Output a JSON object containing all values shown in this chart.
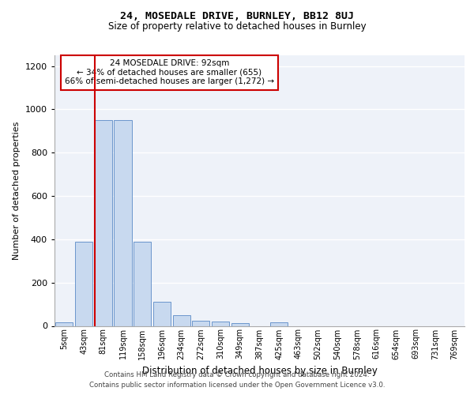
{
  "title1": "24, MOSEDALE DRIVE, BURNLEY, BB12 8UJ",
  "title2": "Size of property relative to detached houses in Burnley",
  "xlabel": "Distribution of detached houses by size in Burnley",
  "ylabel": "Number of detached properties",
  "annotation_line1": "24 MOSEDALE DRIVE: 92sqm",
  "annotation_line2": "← 34% of detached houses are smaller (655)",
  "annotation_line3": "66% of semi-detached houses are larger (1,272) →",
  "footer1": "Contains HM Land Registry data © Crown copyright and database right 2024.",
  "footer2": "Contains public sector information licensed under the Open Government Licence v3.0.",
  "bar_color": "#c8d9ef",
  "bar_edge_color": "#5a8ac6",
  "vline_color": "#cc0000",
  "annotation_box_color": "#cc0000",
  "categories": [
    "5sqm",
    "43sqm",
    "81sqm",
    "119sqm",
    "158sqm",
    "196sqm",
    "234sqm",
    "272sqm",
    "310sqm",
    "349sqm",
    "387sqm",
    "425sqm",
    "463sqm",
    "502sqm",
    "540sqm",
    "578sqm",
    "616sqm",
    "654sqm",
    "693sqm",
    "731sqm",
    "769sqm"
  ],
  "values": [
    15,
    390,
    950,
    950,
    390,
    110,
    50,
    25,
    20,
    13,
    0,
    15,
    0,
    0,
    0,
    0,
    0,
    0,
    0,
    0,
    0
  ],
  "vline_bin_index": 2,
  "ylim": [
    0,
    1250
  ],
  "yticks": [
    0,
    200,
    400,
    600,
    800,
    1000,
    1200
  ],
  "bg_color": "#eef2f9",
  "grid_color": "#ffffff"
}
